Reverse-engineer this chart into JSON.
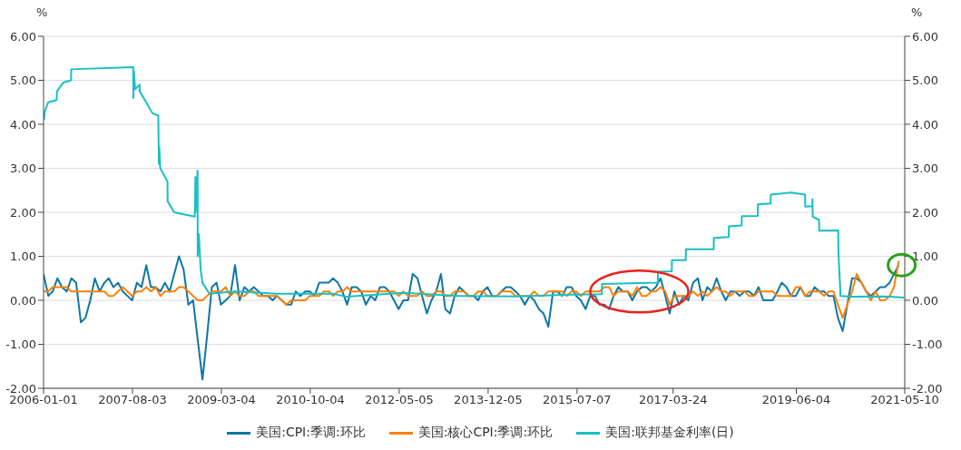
{
  "chart_data": {
    "type": "line",
    "ylabel": "%",
    "y2label": "%",
    "legend": "bottom",
    "grid": "y",
    "marker": "none",
    "line_style": "solid",
    "xlim": [
      "2006-01-01",
      "2021-05-10"
    ],
    "xticks": [
      "2006-01-01",
      "2007-08-03",
      "2009-03-04",
      "2010-10-04",
      "2012-05-05",
      "2013-12-05",
      "2015-07-07",
      "2017-03-24",
      "2019-06-04",
      "2021-05-10"
    ],
    "ylim": [
      -2,
      6
    ],
    "yticks": [
      {
        "value": -2,
        "label": "-2.00"
      },
      {
        "value": -1,
        "label": "-1.00"
      },
      {
        "value": 0,
        "label": "0.00"
      },
      {
        "value": 1,
        "label": "1.00"
      },
      {
        "value": 2,
        "label": "2.00"
      },
      {
        "value": 3,
        "label": "3.00"
      },
      {
        "value": 4,
        "label": "4.00"
      },
      {
        "value": 5,
        "label": "5.00"
      },
      {
        "value": 6,
        "label": "6.00"
      }
    ],
    "y2lim": [
      -2,
      6
    ],
    "y2ticks": [
      {
        "value": -2,
        "label": "-2.00"
      },
      {
        "value": -1,
        "label": "-1.00"
      },
      {
        "value": 0,
        "label": "0.00"
      },
      {
        "value": 1,
        "label": "1.00"
      },
      {
        "value": 2,
        "label": "2.00"
      },
      {
        "value": 3,
        "label": "3.00"
      },
      {
        "value": 4,
        "label": "4.00"
      },
      {
        "value": 5,
        "label": "5.00"
      },
      {
        "value": 6,
        "label": "6.00"
      }
    ],
    "x": [
      "2006-01",
      "2006-02",
      "2006-03",
      "2006-04",
      "2006-05",
      "2006-06",
      "2006-07",
      "2006-08",
      "2006-09",
      "2006-10",
      "2006-11",
      "2006-12",
      "2007-01",
      "2007-02",
      "2007-03",
      "2007-04",
      "2007-05",
      "2007-06",
      "2007-07",
      "2007-08",
      "2007-09",
      "2007-10",
      "2007-11",
      "2007-12",
      "2008-01",
      "2008-02",
      "2008-03",
      "2008-04",
      "2008-05",
      "2008-06",
      "2008-07",
      "2008-08",
      "2008-09",
      "2008-10",
      "2008-11",
      "2008-12",
      "2009-01",
      "2009-02",
      "2009-03",
      "2009-04",
      "2009-05",
      "2009-06",
      "2009-07",
      "2009-08",
      "2009-09",
      "2009-10",
      "2009-11",
      "2009-12",
      "2010-01",
      "2010-02",
      "2010-03",
      "2010-04",
      "2010-05",
      "2010-06",
      "2010-07",
      "2010-08",
      "2010-09",
      "2010-10",
      "2010-11",
      "2010-12",
      "2011-01",
      "2011-02",
      "2011-03",
      "2011-04",
      "2011-05",
      "2011-06",
      "2011-07",
      "2011-08",
      "2011-09",
      "2011-10",
      "2011-11",
      "2011-12",
      "2012-01",
      "2012-02",
      "2012-03",
      "2012-04",
      "2012-05",
      "2012-06",
      "2012-07",
      "2012-08",
      "2012-09",
      "2012-10",
      "2012-11",
      "2012-12",
      "2013-01",
      "2013-02",
      "2013-03",
      "2013-04",
      "2013-05",
      "2013-06",
      "2013-07",
      "2013-08",
      "2013-09",
      "2013-10",
      "2013-11",
      "2013-12",
      "2014-01",
      "2014-02",
      "2014-03",
      "2014-04",
      "2014-05",
      "2014-06",
      "2014-07",
      "2014-08",
      "2014-09",
      "2014-10",
      "2014-11",
      "2014-12",
      "2015-01",
      "2015-02",
      "2015-03",
      "2015-04",
      "2015-05",
      "2015-06",
      "2015-07",
      "2015-08",
      "2015-09",
      "2015-10",
      "2015-11",
      "2015-12",
      "2016-01",
      "2016-02",
      "2016-03",
      "2016-04",
      "2016-05",
      "2016-06",
      "2016-07",
      "2016-08",
      "2016-09",
      "2016-10",
      "2016-11",
      "2016-12",
      "2017-01",
      "2017-02",
      "2017-03",
      "2017-04",
      "2017-05",
      "2017-06",
      "2017-07",
      "2017-08",
      "2017-09",
      "2017-10",
      "2017-11",
      "2017-12",
      "2018-01",
      "2018-02",
      "2018-03",
      "2018-04",
      "2018-05",
      "2018-06",
      "2018-07",
      "2018-08",
      "2018-09",
      "2018-10",
      "2018-11",
      "2018-12",
      "2019-01",
      "2019-02",
      "2019-03",
      "2019-04",
      "2019-05",
      "2019-06",
      "2019-07",
      "2019-08",
      "2019-09",
      "2019-10",
      "2019-11",
      "2019-12",
      "2020-01",
      "2020-02",
      "2020-03",
      "2020-04",
      "2020-05",
      "2020-06",
      "2020-07",
      "2020-08",
      "2020-09",
      "2020-10",
      "2020-11",
      "2020-12",
      "2021-01",
      "2021-02",
      "2021-03",
      "2021-04"
    ],
    "series": [
      {
        "name": "美国:CPI:季调:环比",
        "color": "#0e77a5",
        "values": [
          0.6,
          0.1,
          0.2,
          0.5,
          0.3,
          0.2,
          0.5,
          0.4,
          -0.5,
          -0.4,
          0.0,
          0.5,
          0.2,
          0.4,
          0.5,
          0.3,
          0.4,
          0.2,
          0.1,
          0.0,
          0.4,
          0.3,
          0.8,
          0.3,
          0.3,
          0.2,
          0.4,
          0.2,
          0.6,
          1.0,
          0.7,
          -0.1,
          0.0,
          -0.9,
          -1.8,
          -0.8,
          0.3,
          0.4,
          -0.1,
          0.0,
          0.1,
          0.8,
          0.0,
          0.3,
          0.2,
          0.3,
          0.2,
          0.1,
          0.1,
          0.0,
          0.1,
          0.0,
          -0.1,
          -0.1,
          0.2,
          0.1,
          0.2,
          0.2,
          0.1,
          0.4,
          0.4,
          0.4,
          0.5,
          0.4,
          0.2,
          -0.1,
          0.3,
          0.3,
          0.2,
          -0.1,
          0.1,
          0.0,
          0.3,
          0.3,
          0.2,
          0.0,
          -0.2,
          0.0,
          0.0,
          0.6,
          0.5,
          0.1,
          -0.3,
          0.0,
          0.2,
          0.6,
          -0.2,
          -0.3,
          0.1,
          0.3,
          0.2,
          0.1,
          0.1,
          0.0,
          0.2,
          0.3,
          0.1,
          0.1,
          0.2,
          0.3,
          0.3,
          0.2,
          0.1,
          -0.1,
          0.1,
          0.0,
          -0.2,
          -0.3,
          -0.6,
          0.2,
          0.2,
          0.1,
          0.3,
          0.3,
          0.1,
          0.0,
          -0.2,
          0.1,
          0.1,
          -0.1,
          -0.1,
          -0.2,
          0.1,
          0.3,
          0.2,
          0.2,
          0.0,
          0.2,
          0.3,
          0.3,
          0.2,
          0.3,
          0.5,
          0.1,
          -0.3,
          0.2,
          -0.1,
          0.1,
          0.0,
          0.4,
          0.5,
          0.0,
          0.3,
          0.2,
          0.5,
          0.2,
          0.0,
          0.2,
          0.2,
          0.1,
          0.2,
          0.2,
          0.1,
          0.3,
          0.0,
          0.0,
          0.0,
          0.2,
          0.4,
          0.3,
          0.1,
          0.1,
          0.3,
          0.1,
          0.1,
          0.3,
          0.2,
          0.2,
          0.1,
          0.1,
          -0.4,
          -0.7,
          -0.1,
          0.5,
          0.5,
          0.4,
          0.2,
          0.1,
          0.2,
          0.3,
          0.3,
          0.4,
          0.6,
          0.8
        ]
      },
      {
        "name": "美国:核心CPI:季调:环比",
        "color": "#fd8008",
        "values": [
          0.2,
          0.2,
          0.3,
          0.3,
          0.3,
          0.3,
          0.2,
          0.2,
          0.2,
          0.2,
          0.2,
          0.2,
          0.2,
          0.2,
          0.1,
          0.1,
          0.2,
          0.3,
          0.2,
          0.1,
          0.2,
          0.2,
          0.3,
          0.2,
          0.3,
          0.1,
          0.2,
          0.2,
          0.2,
          0.3,
          0.3,
          0.2,
          0.1,
          0.0,
          0.0,
          0.1,
          0.2,
          0.2,
          0.2,
          0.3,
          0.1,
          0.2,
          0.1,
          0.1,
          0.2,
          0.2,
          0.1,
          0.1,
          0.1,
          0.1,
          0.1,
          0.0,
          -0.1,
          0.0,
          0.0,
          0.0,
          0.0,
          0.1,
          0.1,
          0.1,
          0.2,
          0.2,
          0.1,
          0.2,
          0.2,
          0.3,
          0.2,
          0.2,
          0.2,
          0.2,
          0.2,
          0.2,
          0.2,
          0.2,
          0.2,
          0.2,
          0.1,
          0.2,
          0.1,
          0.1,
          0.1,
          0.2,
          0.1,
          0.1,
          0.2,
          0.2,
          0.1,
          0.1,
          0.2,
          0.2,
          0.2,
          0.1,
          0.1,
          0.2,
          0.2,
          0.1,
          0.1,
          0.1,
          0.2,
          0.2,
          0.2,
          0.1,
          0.1,
          0.1,
          0.1,
          0.2,
          0.1,
          0.1,
          0.2,
          0.2,
          0.2,
          0.2,
          0.1,
          0.2,
          0.2,
          0.1,
          0.2,
          0.2,
          0.2,
          0.2,
          0.3,
          0.3,
          0.1,
          0.2,
          0.2,
          0.2,
          0.1,
          0.3,
          0.1,
          0.1,
          0.2,
          0.2,
          0.3,
          0.2,
          -0.1,
          0.1,
          0.1,
          0.1,
          0.1,
          0.2,
          0.1,
          0.2,
          0.1,
          0.2,
          0.3,
          0.2,
          0.2,
          0.1,
          0.2,
          0.2,
          0.2,
          0.1,
          0.1,
          0.2,
          0.2,
          0.2,
          0.2,
          0.1,
          0.1,
          0.1,
          0.1,
          0.3,
          0.3,
          0.1,
          0.2,
          0.2,
          0.2,
          0.1,
          0.2,
          0.2,
          -0.1,
          -0.4,
          -0.1,
          0.2,
          0.6,
          0.4,
          0.2,
          0.0,
          0.2,
          0.0,
          0.0,
          0.1,
          0.3,
          0.9
        ]
      },
      {
        "name": "美国:联邦基金利率(日)",
        "color": "#17c0c5",
        "x": [
          "2006-01-03",
          "2006-01-10",
          "2006-01-31",
          "2006-03-28",
          "2006-03-29",
          "2006-05-10",
          "2006-06-29",
          "2006-06-30",
          "2007-08-08",
          "2007-08-09",
          "2007-08-13",
          "2007-08-20",
          "2007-09-18",
          "2007-09-19",
          "2007-10-31",
          "2007-12-11",
          "2008-01-18",
          "2008-01-22",
          "2008-01-24",
          "2008-01-31",
          "2008-03-18",
          "2008-03-19",
          "2008-04-30",
          "2008-09-12",
          "2008-09-16",
          "2008-09-17",
          "2008-09-30",
          "2008-10-01",
          "2008-10-08",
          "2008-10-20",
          "2008-11-01",
          "2008-12-16",
          "2009-06-01",
          "2010-03-01",
          "2011-03-01",
          "2011-06-01",
          "2012-06-01",
          "2013-06-01",
          "2014-06-01",
          "2015-06-01",
          "2015-12-15",
          "2015-12-17",
          "2016-12-14",
          "2016-12-15",
          "2017-03-15",
          "2017-03-16",
          "2017-06-14",
          "2017-06-15",
          "2017-12-13",
          "2017-12-14",
          "2018-03-21",
          "2018-03-22",
          "2018-06-13",
          "2018-06-14",
          "2018-09-26",
          "2018-09-27",
          "2018-12-19",
          "2018-12-20",
          "2019-05-01",
          "2019-07-31",
          "2019-08-01",
          "2019-09-16",
          "2019-09-17",
          "2019-09-19",
          "2019-10-30",
          "2019-10-31",
          "2020-03-03",
          "2020-03-04",
          "2020-03-16",
          "2020-03-17",
          "2020-06-01",
          "2021-01-01",
          "2021-05-07"
        ],
        "values": [
          4.1,
          4.3,
          4.5,
          4.55,
          4.75,
          4.95,
          5.0,
          5.25,
          5.3,
          4.6,
          5.2,
          4.8,
          4.9,
          4.75,
          4.5,
          4.25,
          4.2,
          3.1,
          3.5,
          3.0,
          2.7,
          2.25,
          2.0,
          1.9,
          2.8,
          2.0,
          2.95,
          1.0,
          1.5,
          0.7,
          0.4,
          0.15,
          0.2,
          0.15,
          0.15,
          0.08,
          0.17,
          0.1,
          0.09,
          0.13,
          0.14,
          0.37,
          0.4,
          0.65,
          0.66,
          0.91,
          0.91,
          1.16,
          1.16,
          1.42,
          1.44,
          1.68,
          1.7,
          1.91,
          1.92,
          2.18,
          2.2,
          2.4,
          2.45,
          2.4,
          2.13,
          2.14,
          2.3,
          1.9,
          1.83,
          1.58,
          1.59,
          1.1,
          0.25,
          0.1,
          0.08,
          0.09,
          0.06
        ]
      }
    ]
  }
}
